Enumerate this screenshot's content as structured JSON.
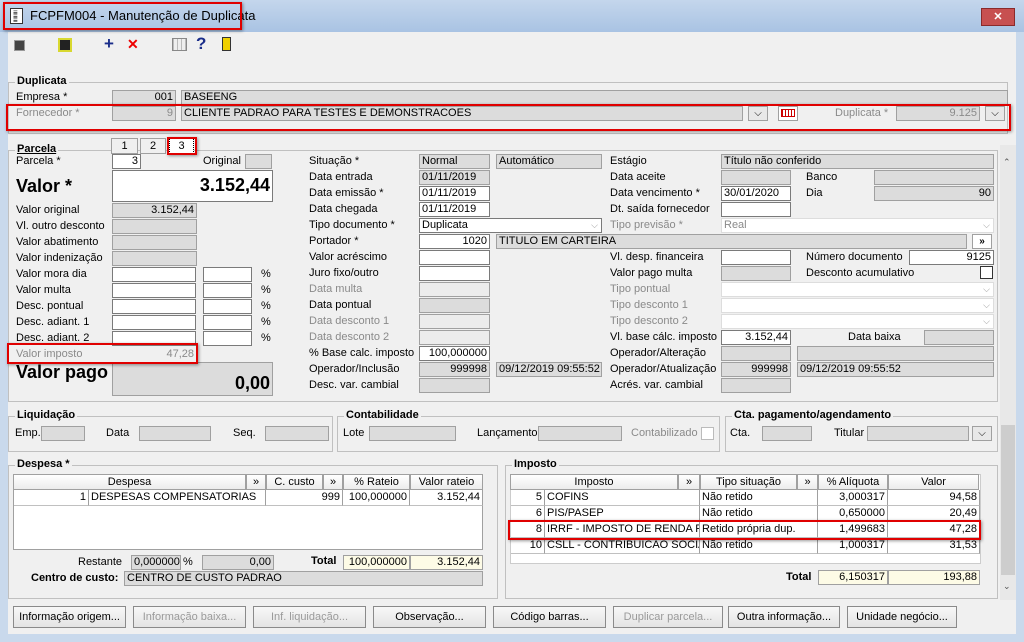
{
  "window": {
    "title": "FCPFM004 - Manutenção de Duplicata",
    "close": "✕"
  },
  "toolbar": {
    "icons": [
      "navigate-icon",
      "save-icon",
      "add-icon",
      "delete-icon",
      "calendar-icon",
      "help-icon",
      "exit-icon"
    ],
    "add": "+",
    "delete": "✕",
    "help": "?"
  },
  "duplicata": {
    "legend": "Duplicata",
    "empresa_label": "Empresa *",
    "empresa_code": "001",
    "empresa_name": "BASEENG",
    "fornecedor_label": "Fornecedor *",
    "fornecedor_code": "9",
    "fornecedor_name": "CLIENTE PADRAO PARA TESTES E DEMONSTRACOES",
    "duplicata_label": "Duplicata *",
    "duplicata_value": "9.125"
  },
  "parcela": {
    "legend": "Parcela",
    "tabs": [
      "1",
      "2",
      "3"
    ],
    "selected_tab": "3",
    "parcela_label": "Parcela *",
    "parcela_value": "3",
    "original_label": "Original",
    "valor_label": "Valor *",
    "valor_value": "3.152,44",
    "rows": [
      {
        "label": "Valor original",
        "value": "3.152,44"
      },
      {
        "label": "Vl. outro desconto",
        "value": ""
      },
      {
        "label": "Valor abatimento",
        "value": ""
      },
      {
        "label": "Valor indenização",
        "value": ""
      },
      {
        "label": "Valor mora dia",
        "value": ""
      },
      {
        "label": "Valor multa",
        "value": ""
      },
      {
        "label": "Desc. pontual",
        "value": ""
      },
      {
        "label": "Desc. adiant. 1",
        "value": ""
      },
      {
        "label": "Desc. adiant. 2",
        "value": ""
      },
      {
        "label": "Valor imposto",
        "value": "47,28"
      }
    ],
    "percent": "%",
    "valor_pago_label": "Valor pago",
    "valor_pago_value": "0,00",
    "mid": {
      "situacao_label": "Situação *",
      "situacao": "Normal",
      "situacao2": "Automático",
      "data_entrada_label": "Data entrada",
      "data_entrada": "01/11/2019",
      "data_emissao_label": "Data emissão *",
      "data_emissao": "01/11/2019",
      "data_chegada_label": "Data chegada",
      "data_chegada": "01/11/2019",
      "tipo_documento_label": "Tipo documento *",
      "tipo_documento": "Duplicata",
      "portador_label": "Portador *",
      "portador_code": "1020",
      "portador_name": "TITULO EM CARTEIRA",
      "valor_acrescimo_label": "Valor acréscimo",
      "juro_label": "Juro fixo/outro",
      "data_multa_label": "Data multa",
      "data_pontual_label": "Data pontual",
      "data_desconto1_label": "Data desconto 1",
      "data_desconto2_label": "Data desconto 2",
      "base_calc_label": "% Base calc. imposto",
      "base_calc": "100,000000",
      "operador_inclusao_label": "Operador/Inclusão",
      "operador_inclusao": "999998",
      "inclusao_datetime": "09/12/2019 09:55:52",
      "desc_var_label": "Desc. var. cambial"
    },
    "right": {
      "estagio_label": "Estágio",
      "estagio": "Título não conferido",
      "data_aceite_label": "Data aceite",
      "banco_label": "Banco",
      "data_vencimento_label": "Data vencimento *",
      "data_vencimento": "30/01/2020",
      "dia_label": "Dia",
      "dia": "90",
      "dt_saida_label": "Dt. saída fornecedor",
      "tipo_previsao_label": "Tipo previsão *",
      "tipo_previsao": "Real",
      "desp_fin_label": "Vl. desp. financeira",
      "numero_doc_label": "Número documento",
      "numero_doc": "9125",
      "valor_pago_multa_label": "Valor pago multa",
      "desconto_acum_label": "Desconto acumulativo",
      "tipo_pontual_label": "Tipo pontual",
      "tipo_desconto1_label": "Tipo desconto 1",
      "tipo_desconto2_label": "Tipo desconto 2",
      "base_calc_imposto_label": "Vl. base cálc. imposto",
      "base_calc_imposto": "3.152,44",
      "data_baixa_label": "Data baixa",
      "operador_alteracao_label": "Operador/Alteração",
      "operador_atualizacao_label": "Operador/Atualização",
      "operador_atualizacao": "999998",
      "atualizacao_datetime": "09/12/2019 09:55:52",
      "acres_var_label": "Acrés. var. cambial"
    }
  },
  "liquidacao": {
    "legend": "Liquidação",
    "emp": "Emp.",
    "data": "Data",
    "seq": "Seq."
  },
  "contabilidade": {
    "legend": "Contabilidade",
    "lote": "Lote",
    "lancamento": "Lançamento",
    "contabilizado": "Contabilizado"
  },
  "cta": {
    "legend": "Cta. pagamento/agendamento",
    "cta": "Cta.",
    "titular": "Titular"
  },
  "despesa": {
    "legend": "Despesa *",
    "headers": [
      "Despesa",
      "C. custo",
      "% Rateio",
      "Valor rateio"
    ],
    "rows": [
      {
        "code": "1",
        "name": "DESPESAS COMPENSATORIAS",
        "ccusto": "999",
        "rateio": "100,000000",
        "valor": "3.152,44"
      }
    ],
    "restante_label": "Restante",
    "restante_pct": "0,000000",
    "restante_valor": "0,00",
    "total_label": "Total",
    "total_rateio": "100,000000",
    "total_valor": "3.152,44",
    "centro_label": "Centro de custo:",
    "centro_value": "CENTRO DE CUSTO PADRAO"
  },
  "imposto": {
    "legend": "Imposto",
    "headers": [
      "Imposto",
      "Tipo situação",
      "% Alíquota",
      "Valor"
    ],
    "rows": [
      {
        "code": "5",
        "name": "COFINS",
        "tipo": "Não retido",
        "aliquota": "3,000317",
        "valor": "94,58"
      },
      {
        "code": "6",
        "name": "PIS/PASEP",
        "tipo": "Não retido",
        "aliquota": "0,650000",
        "valor": "20,49"
      },
      {
        "code": "8",
        "name": "IRRF - IMPOSTO DE RENDA RET",
        "tipo": "Retido própria dup.",
        "aliquota": "1,499683",
        "valor": "47,28"
      },
      {
        "code": "10",
        "name": "CSLL - CONTRIBUICAO SOCIAL",
        "tipo": "Não retido",
        "aliquota": "1,000317",
        "valor": "31,53"
      }
    ],
    "total_label": "Total",
    "total_aliquota": "6,150317",
    "total_valor": "193,88"
  },
  "buttons": [
    {
      "label": "Informação origem...",
      "enabled": true
    },
    {
      "label": "Informação baixa...",
      "enabled": false
    },
    {
      "label": "Inf. liquidação...",
      "enabled": false
    },
    {
      "label": "Observação...",
      "enabled": true
    },
    {
      "label": "Código barras...",
      "enabled": true
    },
    {
      "label": "Duplicar parcela...",
      "enabled": false
    },
    {
      "label": "Outra informação...",
      "enabled": true
    },
    {
      "label": "Unidade negócio...",
      "enabled": true
    }
  ],
  "colors": {
    "highlight": "#e00000",
    "titlebar": "#b7cde8",
    "total_bg": "#fdfbe6"
  }
}
